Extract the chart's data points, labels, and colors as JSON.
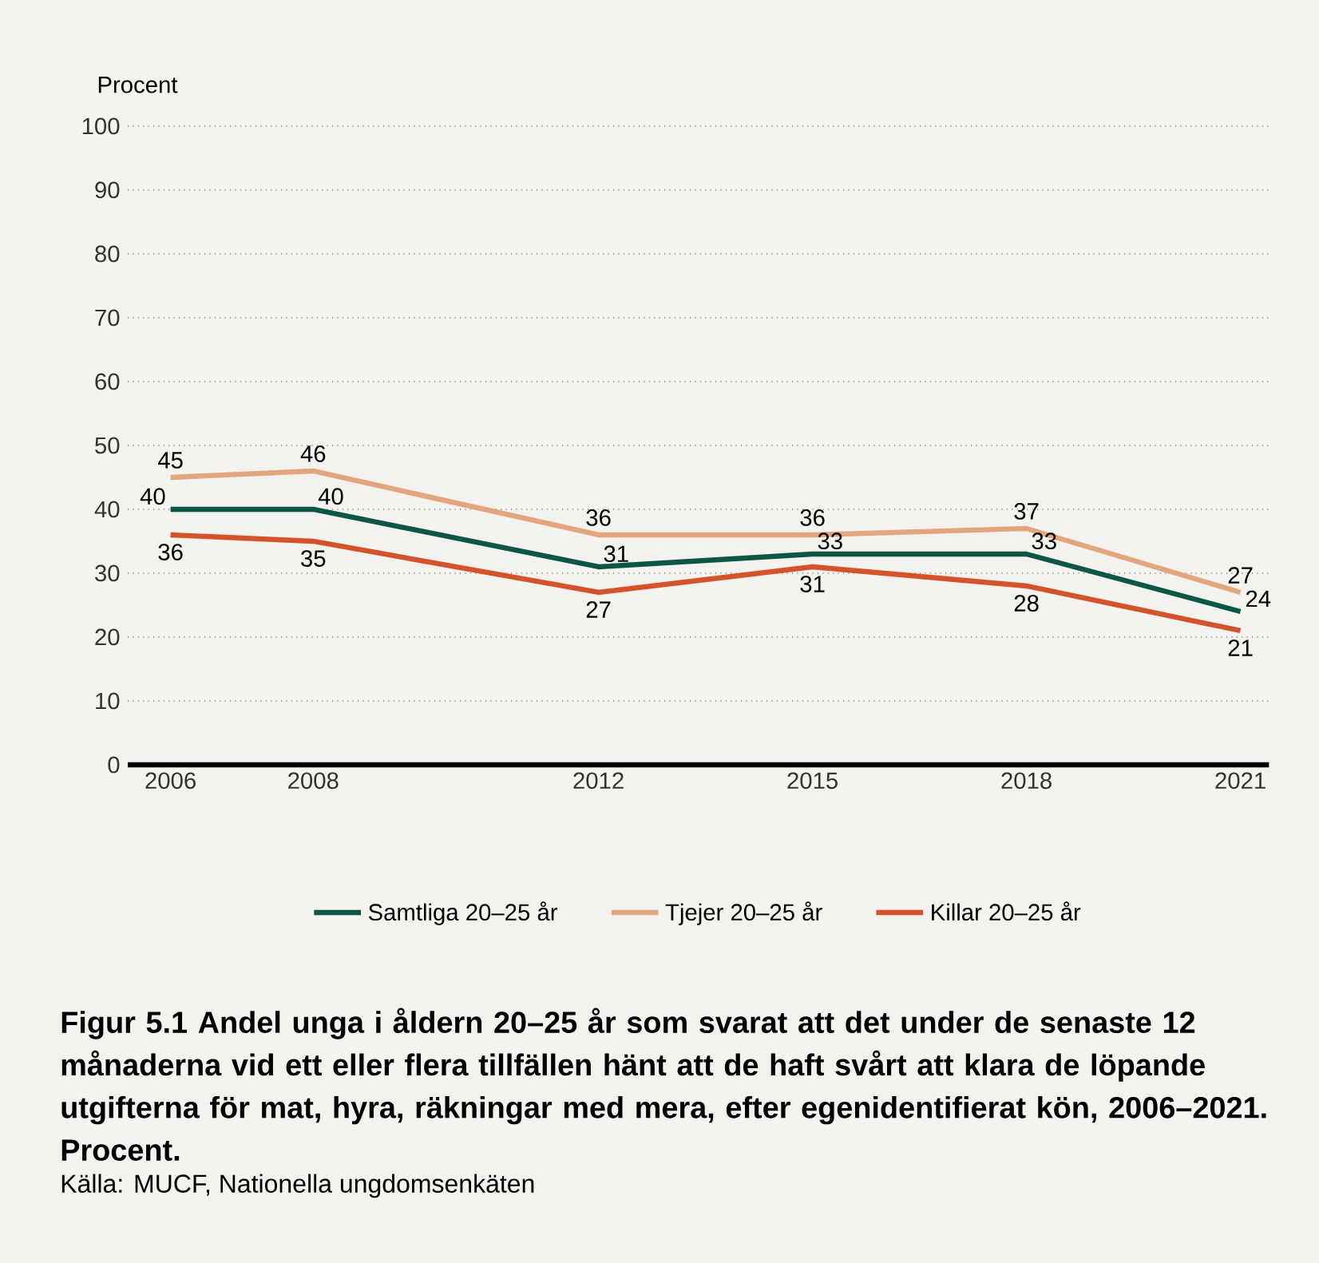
{
  "chart_data": {
    "type": "line",
    "title": "Figur 5.1 Andel unga i åldern 20–25 år som svarat att det under de senaste 12 månaderna vid ett eller flera tillfällen hänt att de haft svårt att klara de löpande utgifterna för mat, hyra, räkningar med mera, efter egenidentifierat kön, 2006–2021. Procent.",
    "ylabel": "Procent",
    "annotations": [
      "Källa: MUCF, Nationella ungdomsenkäten"
    ],
    "x": [
      2006,
      2008,
      2012,
      2015,
      2018,
      2021
    ],
    "series": [
      {
        "name": "Samtliga 20–25 år",
        "color": "#0b5644",
        "values": [
          40,
          40,
          31,
          33,
          33,
          24
        ]
      },
      {
        "name": "Tjejer 20–25 år",
        "color": "#e3a57d",
        "values": [
          45,
          46,
          36,
          36,
          37,
          27
        ]
      },
      {
        "name": "Killar 20–25 år",
        "color": "#d4532b",
        "values": [
          36,
          35,
          27,
          31,
          28,
          21
        ]
      }
    ],
    "xlim": [
      2005.4,
      2021.4
    ],
    "xticks": [
      2006,
      2008,
      2012,
      2015,
      2018,
      2021
    ],
    "ylim": [
      0,
      100
    ],
    "yticks": [
      0,
      10,
      20,
      30,
      40,
      50,
      60,
      70,
      80,
      90,
      100
    ],
    "grid": "y",
    "legend": "bottom",
    "marker": "none",
    "line_style": "solid",
    "data_labels": true
  }
}
